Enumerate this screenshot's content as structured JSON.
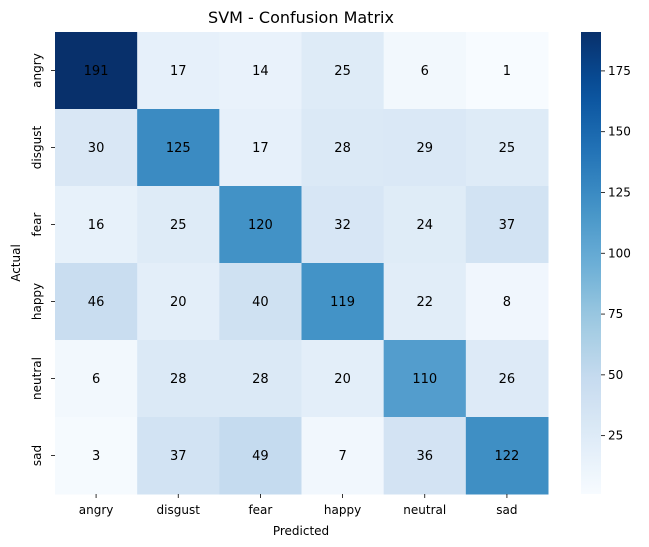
{
  "chart_data": {
    "type": "heatmap",
    "title": "SVM - Confusion Matrix",
    "xlabel": "Predicted",
    "ylabel": "Actual",
    "x_categories": [
      "angry",
      "disgust",
      "fear",
      "happy",
      "neutral",
      "sad"
    ],
    "y_categories": [
      "angry",
      "disgust",
      "fear",
      "happy",
      "neutral",
      "sad"
    ],
    "values": [
      [
        191,
        17,
        14,
        25,
        6,
        1
      ],
      [
        30,
        125,
        17,
        28,
        29,
        25
      ],
      [
        16,
        25,
        120,
        32,
        24,
        37
      ],
      [
        46,
        20,
        40,
        119,
        22,
        8
      ],
      [
        6,
        28,
        28,
        20,
        110,
        26
      ],
      [
        3,
        37,
        49,
        7,
        36,
        122
      ]
    ],
    "colormap": "Blues",
    "value_range": [
      1,
      191
    ],
    "colorbar_ticks": [
      25,
      50,
      75,
      100,
      125,
      150,
      175
    ]
  }
}
